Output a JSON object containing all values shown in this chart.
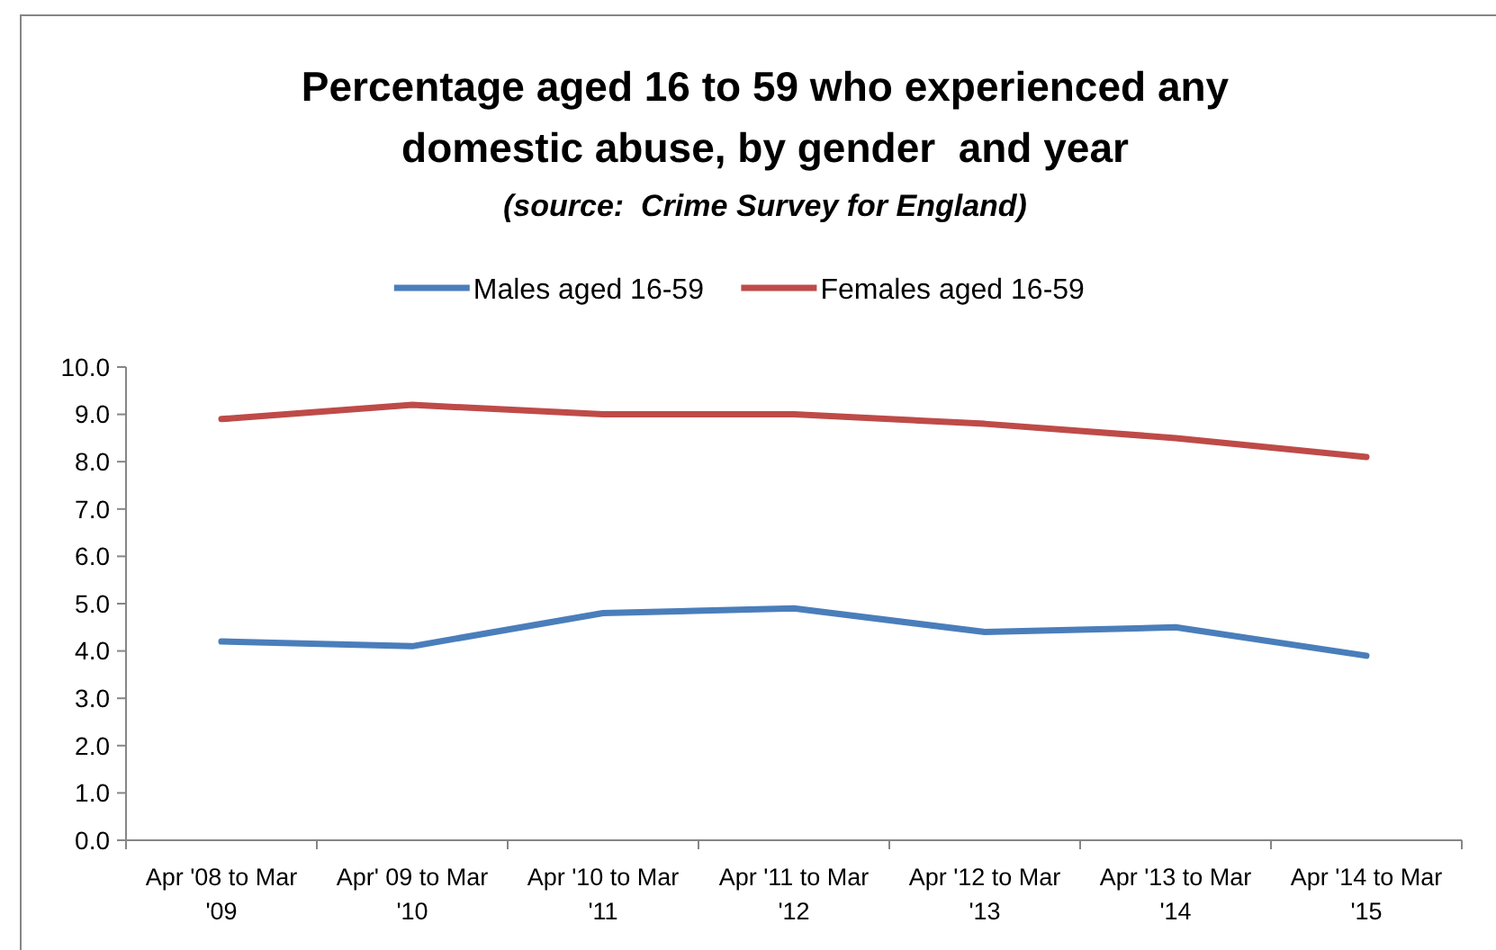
{
  "chart_data": {
    "type": "line",
    "title": "Percentage aged 16 to 59 who experienced any\ndomestic abuse, by gender  and year",
    "annotations": [
      "(source:  Crime Survey for England)"
    ],
    "categories": [
      "Apr '08 to Mar '09",
      "Apr' 09 to Mar '10",
      "Apr '10 to Mar '11",
      "Apr '11 to Mar '12",
      "Apr '12 to Mar '13",
      "Apr '13 to Mar '14",
      "Apr '14 to Mar '15"
    ],
    "series": [
      {
        "name": "Males aged 16-59",
        "color": "#4a7ebb",
        "values": [
          4.2,
          4.1,
          4.8,
          4.9,
          4.4,
          4.5,
          3.9
        ]
      },
      {
        "name": "Females aged 16-59",
        "color": "#be4b48",
        "values": [
          8.9,
          9.2,
          9.0,
          9.0,
          8.8,
          8.5,
          8.1
        ]
      }
    ],
    "ylim": [
      0,
      10
    ],
    "yticks": [
      {
        "value": 0,
        "label": "0.0"
      },
      {
        "value": 1,
        "label": "1.0"
      },
      {
        "value": 2,
        "label": "2.0"
      },
      {
        "value": 3,
        "label": "3.0"
      },
      {
        "value": 4,
        "label": "4.0"
      },
      {
        "value": 5,
        "label": "5.0"
      },
      {
        "value": 6,
        "label": "6.0"
      },
      {
        "value": 7,
        "label": "7.0"
      },
      {
        "value": 8,
        "label": "8.0"
      },
      {
        "value": 9,
        "label": "9.0"
      },
      {
        "value": 10,
        "label": "10.0"
      }
    ],
    "legend": "top",
    "marker": "none",
    "line_style": "solid"
  }
}
